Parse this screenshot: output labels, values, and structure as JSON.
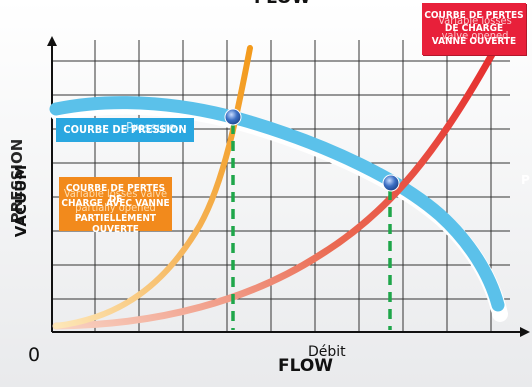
{
  "header": {
    "top_label": "FLOW"
  },
  "axes": {
    "y_title": "VACUUM",
    "y_title_overlay": "PRESSION",
    "x_title": "FLOW",
    "x_title_overlay": "Débit",
    "origin": "0",
    "right_edge_glyph": "P"
  },
  "legend_boxes": {
    "valve_open": {
      "title": "COURBE DE PERTES DE CHARGE VANNE OUVERTE",
      "line1": "COURBE DE PERTES",
      "line2": "DE CHARGE",
      "line3": "VANNE OUVERTE",
      "ghost": "Variable losses valve opened",
      "color": "#e8203a"
    },
    "pressure_curve": {
      "title": "COURBE DE PRESSION",
      "ghost": "Pressure",
      "color": "#2aa7e0"
    },
    "valve_partial": {
      "title": "COURBE DE PERTES DE CHARGE AVEC VANNE PARTIELLEMENT OUVERTE",
      "line1": "COURBE DE PERTES DE",
      "line2": "CHARGE AVEC VANNE",
      "line3": "PARTIELLEMENT OUVERTE",
      "ghost": "Variable losses valve partially opened",
      "color": "#f28a1c"
    }
  },
  "colors": {
    "pressure_curve": "#5bc1ea",
    "open_loss_curve": "#e8432a",
    "partial_loss_curve": "#f3a53a",
    "drop_lines": "#1fa64a",
    "grid": "#333333",
    "operating_point": "#1c4fa0"
  }
}
